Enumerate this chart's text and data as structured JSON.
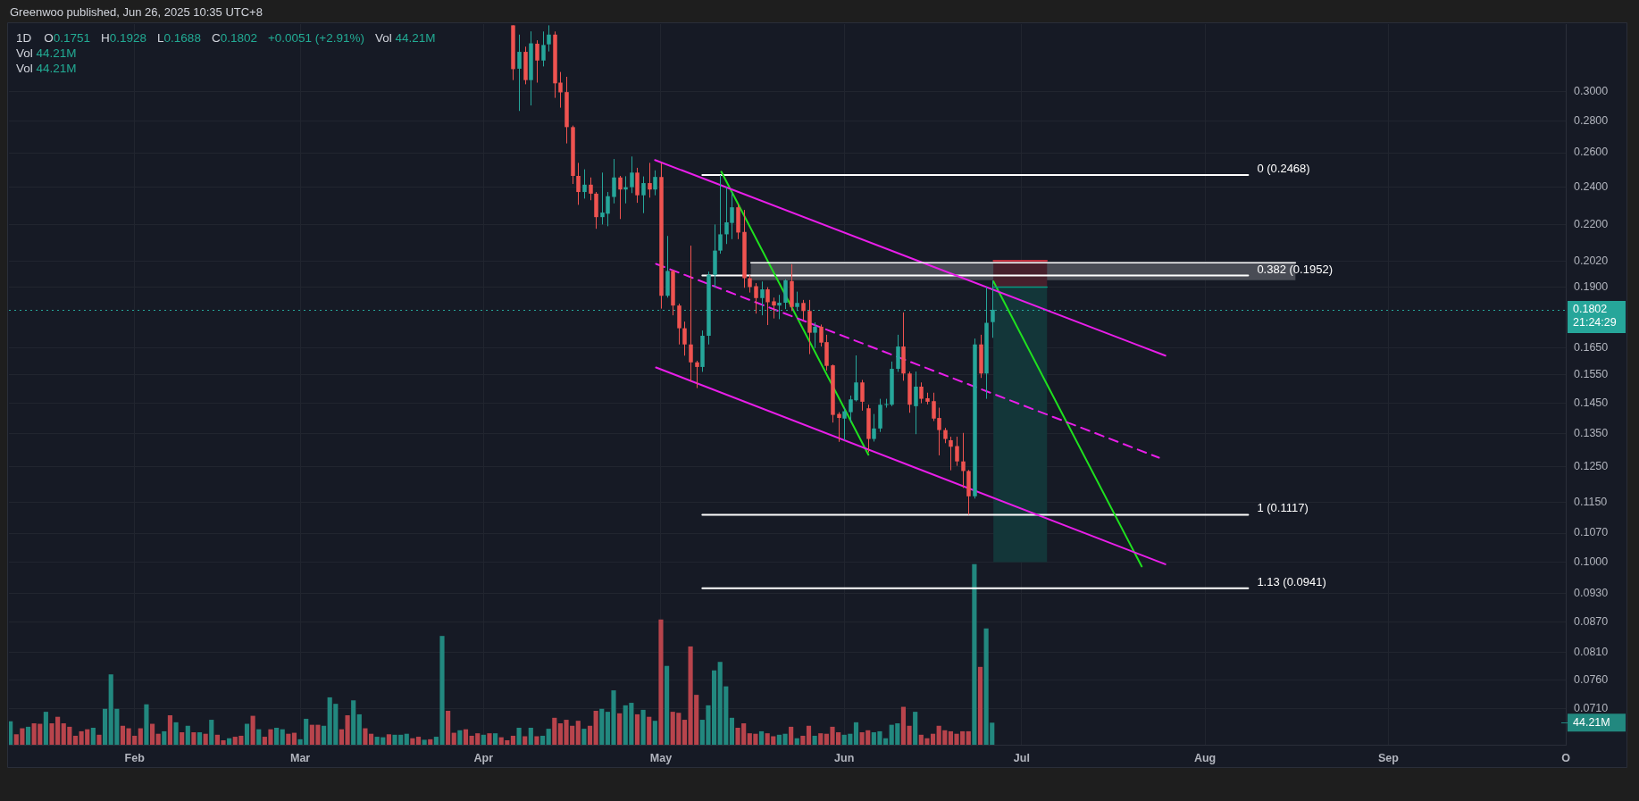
{
  "chart_data": {
    "type": "candlestick",
    "title": "1D",
    "subtitle": "Greenwoo published, Jun 26, 2025 10:35 UTC+8",
    "annotations": [
      "O0.1751",
      "H0.1928",
      "L0.1688",
      "C0.1802",
      "+0.0051 (+2.91%)",
      "Vol 44.21M",
      "Vol 44.21M",
      "Vol 44.21M",
      "21:24:29"
    ],
    "xlim": [
      "2025-01-10T18:00",
      "2025-10-01"
    ],
    "xticks": [
      {
        "value": "2025-02-01",
        "label": "Feb"
      },
      {
        "value": "2025-03-01",
        "label": "Mar"
      },
      {
        "value": "2025-04-01",
        "label": "Apr"
      },
      {
        "value": "2025-05-01",
        "label": "May"
      },
      {
        "value": "2025-06-01",
        "label": "Jun"
      },
      {
        "value": "2025-07-01",
        "label": "Jul"
      },
      {
        "value": "2025-08-01",
        "label": "Aug"
      },
      {
        "value": "2025-09-01",
        "label": "Sep"
      },
      {
        "value": "2025-10-01",
        "label": "O"
      }
    ],
    "ylim": [
      0.0653,
      0.351
    ],
    "yticks": [
      {
        "value": 0.3,
        "label": "0.3000"
      },
      {
        "value": 0.28,
        "label": "0.2800"
      },
      {
        "value": 0.26,
        "label": "0.2600"
      },
      {
        "value": 0.24,
        "label": "0.2400"
      },
      {
        "value": 0.22,
        "label": "0.2200"
      },
      {
        "value": 0.202,
        "label": "0.2020"
      },
      {
        "value": 0.19,
        "label": "0.1900"
      },
      {
        "value": 0.165,
        "label": "0.1650"
      },
      {
        "value": 0.155,
        "label": "0.1550"
      },
      {
        "value": 0.145,
        "label": "0.1450"
      },
      {
        "value": 0.135,
        "label": "0.1350"
      },
      {
        "value": 0.125,
        "label": "0.1250"
      },
      {
        "value": 0.115,
        "label": "0.1150"
      },
      {
        "value": 0.107,
        "label": "0.1070"
      },
      {
        "value": 0.1,
        "label": "0.1000"
      },
      {
        "value": 0.093,
        "label": "0.0930"
      },
      {
        "value": 0.087,
        "label": "0.0870"
      },
      {
        "value": 0.081,
        "label": "0.0810"
      },
      {
        "value": 0.076,
        "label": "0.0760"
      },
      {
        "value": 0.071,
        "label": "0.0710"
      }
    ],
    "y2lim": [
      0,
      1444
    ],
    "y2ticks": [
      {
        "value": 44.21,
        "label": "44.21M"
      }
    ],
    "log": true,
    "grid": true,
    "ref_lines": [
      {
        "axis": "y",
        "value": 0.1802,
        "label": "0.1802",
        "color": "#26a69a",
        "line_style": "dotted"
      }
    ],
    "series": [
      {
        "type": "bar",
        "axis": "y2",
        "x": [
          "2025-01-11",
          "2025-01-12",
          "2025-01-13",
          "2025-01-14",
          "2025-01-15",
          "2025-01-16",
          "2025-01-17",
          "2025-01-18",
          "2025-01-19",
          "2025-01-20",
          "2025-01-21",
          "2025-01-22",
          "2025-01-23",
          "2025-01-24",
          "2025-01-25",
          "2025-01-26",
          "2025-01-27",
          "2025-01-28",
          "2025-01-29",
          "2025-01-30",
          "2025-01-31",
          "2025-02-01",
          "2025-02-02",
          "2025-02-03",
          "2025-02-04",
          "2025-02-05",
          "2025-02-06",
          "2025-02-07",
          "2025-02-08",
          "2025-02-09",
          "2025-02-10",
          "2025-02-11",
          "2025-02-12",
          "2025-02-13",
          "2025-02-14",
          "2025-02-15",
          "2025-02-16",
          "2025-02-17",
          "2025-02-18",
          "2025-02-19",
          "2025-02-20",
          "2025-02-21",
          "2025-02-22",
          "2025-02-23",
          "2025-02-24",
          "2025-02-25",
          "2025-02-26",
          "2025-02-27",
          "2025-02-28",
          "2025-03-01",
          "2025-03-02",
          "2025-03-03",
          "2025-03-04",
          "2025-03-05",
          "2025-03-06",
          "2025-03-07",
          "2025-03-08",
          "2025-03-09",
          "2025-03-10",
          "2025-03-11",
          "2025-03-12",
          "2025-03-13",
          "2025-03-14",
          "2025-03-15",
          "2025-03-16",
          "2025-03-17",
          "2025-03-18",
          "2025-03-19",
          "2025-03-20",
          "2025-03-21",
          "2025-03-22",
          "2025-03-23",
          "2025-03-24",
          "2025-03-25",
          "2025-03-26",
          "2025-03-27",
          "2025-03-28",
          "2025-03-29",
          "2025-03-30",
          "2025-03-31",
          "2025-04-01",
          "2025-04-02",
          "2025-04-03",
          "2025-04-04",
          "2025-04-05",
          "2025-04-06",
          "2025-04-07",
          "2025-04-08",
          "2025-04-09",
          "2025-04-10",
          "2025-04-11",
          "2025-04-12",
          "2025-04-13",
          "2025-04-14",
          "2025-04-15",
          "2025-04-16",
          "2025-04-17",
          "2025-04-18",
          "2025-04-19",
          "2025-04-20",
          "2025-04-21",
          "2025-04-22",
          "2025-04-23",
          "2025-04-24",
          "2025-04-25",
          "2025-04-26",
          "2025-04-27",
          "2025-04-28",
          "2025-04-29",
          "2025-04-30",
          "2025-05-01",
          "2025-05-02",
          "2025-05-03",
          "2025-05-04",
          "2025-05-05",
          "2025-05-06",
          "2025-05-07",
          "2025-05-08",
          "2025-05-09",
          "2025-05-10",
          "2025-05-11",
          "2025-05-12",
          "2025-05-13",
          "2025-05-14",
          "2025-05-15",
          "2025-05-16",
          "2025-05-17",
          "2025-05-18",
          "2025-05-19",
          "2025-05-20",
          "2025-05-21",
          "2025-05-22",
          "2025-05-23",
          "2025-05-24",
          "2025-05-25",
          "2025-05-26",
          "2025-05-27",
          "2025-05-28",
          "2025-05-29",
          "2025-05-30",
          "2025-05-31",
          "2025-06-01",
          "2025-06-02",
          "2025-06-03",
          "2025-06-04",
          "2025-06-05",
          "2025-06-06",
          "2025-06-07",
          "2025-06-08",
          "2025-06-09",
          "2025-06-10",
          "2025-06-11",
          "2025-06-12",
          "2025-06-13",
          "2025-06-14",
          "2025-06-15",
          "2025-06-16",
          "2025-06-17",
          "2025-06-18",
          "2025-06-19",
          "2025-06-20",
          "2025-06-21",
          "2025-06-22",
          "2025-06-23",
          "2025-06-24",
          "2025-06-25",
          "2025-06-26"
        ],
        "values": [
          47,
          21,
          33,
          36,
          43,
          42,
          66,
          43,
          56,
          43,
          36,
          18,
          27,
          31,
          34,
          20,
          72,
          141,
          72,
          38,
          33,
          18,
          33,
          81,
          42,
          22,
          27,
          59,
          45,
          25,
          38,
          25,
          25,
          22,
          50,
          20,
          9,
          13,
          16,
          18,
          42,
          58,
          31,
          16,
          31,
          34,
          31,
          22,
          24,
          11,
          52,
          40,
          40,
          38,
          95,
          82,
          31,
          59,
          89,
          61,
          33,
          22,
          16,
          15,
          21,
          20,
          20,
          22,
          13,
          16,
          10,
          11,
          16,
          218,
          68,
          24,
          29,
          31,
          18,
          23,
          20,
          23,
          23,
          15,
          9,
          18,
          34,
          17,
          34,
          17,
          18,
          32,
          54,
          43,
          50,
          38,
          48,
          32,
          38,
          68,
          72,
          66,
          109,
          63,
          79,
          84,
          61,
          70,
          56,
          48,
          251,
          158,
          66,
          64,
          50,
          197,
          100,
          50,
          79,
          149,
          166,
          117,
          54,
          34,
          43,
          23,
          22,
          27,
          23,
          17,
          20,
          22,
          36,
          13,
          18,
          38,
          18,
          23,
          22,
          36,
          25,
          20,
          22,
          45,
          25,
          29,
          25,
          27,
          13,
          40,
          43,
          76,
          38,
          66,
          20,
          13,
          22,
          38,
          29,
          27,
          22,
          27,
          27,
          362,
          156,
          233,
          44.21
        ],
        "colors": [
          "#22887f",
          "#b8444c",
          "#b8444c",
          "#22887f",
          "#b8444c",
          "#b8444c",
          "#22887f",
          "#b8444c",
          "#b8444c",
          "#b8444c",
          "#b8444c",
          "#b8444c",
          "#b8444c",
          "#b8444c",
          "#22887f",
          "#b8444c",
          "#22887f",
          "#22887f",
          "#22887f",
          "#b8444c",
          "#b8444c",
          "#b8444c",
          "#b8444c",
          "#22887f",
          "#b8444c",
          "#b8444c",
          "#22887f",
          "#b8444c",
          "#22887f",
          "#b8444c",
          "#22887f",
          "#b8444c",
          "#22887f",
          "#b8444c",
          "#22887f",
          "#b8444c",
          "#b8444c",
          "#22887f",
          "#b8444c",
          "#b8444c",
          "#22887f",
          "#b8444c",
          "#22887f",
          "#b8444c",
          "#b8444c",
          "#22887f",
          "#22887f",
          "#b8444c",
          "#b8444c",
          "#22887f",
          "#22887f",
          "#b8444c",
          "#b8444c",
          "#22887f",
          "#22887f",
          "#22887f",
          "#b8444c",
          "#b8444c",
          "#22887f",
          "#22887f",
          "#b8444c",
          "#b8444c",
          "#22887f",
          "#22887f",
          "#b8444c",
          "#22887f",
          "#22887f",
          "#22887f",
          "#b8444c",
          "#b8444c",
          "#22887f",
          "#b8444c",
          "#22887f",
          "#22887f",
          "#b8444c",
          "#b8444c",
          "#22887f",
          "#b8444c",
          "#b8444c",
          "#b8444c",
          "#22887f",
          "#b8444c",
          "#22887f",
          "#b8444c",
          "#b8444c",
          "#b8444c",
          "#22887f",
          "#b8444c",
          "#22887f",
          "#b8444c",
          "#22887f",
          "#22887f",
          "#b8444c",
          "#b8444c",
          "#b8444c",
          "#b8444c",
          "#b8444c",
          "#22887f",
          "#b8444c",
          "#b8444c",
          "#22887f",
          "#22887f",
          "#22887f",
          "#b8444c",
          "#22887f",
          "#22887f",
          "#b8444c",
          "#22887f",
          "#b8444c",
          "#22887f",
          "#b8444c",
          "#22887f",
          "#b8444c",
          "#b8444c",
          "#b8444c",
          "#b8444c",
          "#b8444c",
          "#22887f",
          "#22887f",
          "#22887f",
          "#22887f",
          "#22887f",
          "#22887f",
          "#b8444c",
          "#b8444c",
          "#b8444c",
          "#b8444c",
          "#22887f",
          "#b8444c",
          "#b8444c",
          "#22887f",
          "#22887f",
          "#b8444c",
          "#22887f",
          "#b8444c",
          "#b8444c",
          "#22887f",
          "#b8444c",
          "#b8444c",
          "#b8444c",
          "#b8444c",
          "#22887f",
          "#22887f",
          "#22887f",
          "#b8444c",
          "#b8444c",
          "#22887f",
          "#22887f",
          "#22887f",
          "#22887f",
          "#22887f",
          "#b8444c",
          "#b8444c",
          "#22887f",
          "#b8444c",
          "#b8444c",
          "#b8444c",
          "#b8444c",
          "#b8444c",
          "#b8444c",
          "#b8444c",
          "#b8444c",
          "#b8444c",
          "#22887f",
          "#b8444c",
          "#22887f",
          "#22887f"
        ]
      },
      {
        "x": [
          "2025-04-06",
          "2025-04-07",
          "2025-04-08",
          "2025-04-09",
          "2025-04-10",
          "2025-04-11",
          "2025-04-12",
          "2025-04-13",
          "2025-04-14",
          "2025-04-15",
          "2025-04-16",
          "2025-04-17",
          "2025-04-18",
          "2025-04-19",
          "2025-04-20",
          "2025-04-21",
          "2025-04-22",
          "2025-04-23",
          "2025-04-24",
          "2025-04-25",
          "2025-04-26",
          "2025-04-27",
          "2025-04-28",
          "2025-04-29",
          "2025-04-30",
          "2025-05-01",
          "2025-05-02",
          "2025-05-03",
          "2025-05-04",
          "2025-05-05",
          "2025-05-06",
          "2025-05-07",
          "2025-05-08",
          "2025-05-09",
          "2025-05-10",
          "2025-05-11",
          "2025-05-12",
          "2025-05-13",
          "2025-05-14",
          "2025-05-15",
          "2025-05-16",
          "2025-05-17",
          "2025-05-18",
          "2025-05-19",
          "2025-05-20",
          "2025-05-21",
          "2025-05-22",
          "2025-05-23",
          "2025-05-24",
          "2025-05-25",
          "2025-05-26",
          "2025-05-27",
          "2025-05-28",
          "2025-05-29",
          "2025-05-30",
          "2025-05-31",
          "2025-06-01",
          "2025-06-02",
          "2025-06-03",
          "2025-06-04",
          "2025-06-05",
          "2025-06-06",
          "2025-06-07",
          "2025-06-08",
          "2025-06-09",
          "2025-06-10",
          "2025-06-11",
          "2025-06-12",
          "2025-06-13",
          "2025-06-14",
          "2025-06-15",
          "2025-06-16",
          "2025-06-17",
          "2025-06-18",
          "2025-06-19",
          "2025-06-20",
          "2025-06-21",
          "2025-06-22",
          "2025-06-23",
          "2025-06-24",
          "2025-06-25",
          "2025-06-26"
        ],
        "ohlc": [
          [
            0.35,
            0.35,
            0.308,
            0.316
          ],
          [
            0.3163,
            0.3425,
            0.2866,
            0.329
          ],
          [
            0.329,
            0.333,
            0.305,
            0.308
          ],
          [
            0.308,
            0.3451,
            0.2903,
            0.3356
          ],
          [
            0.3353,
            0.338,
            0.3062,
            0.3224
          ],
          [
            0.3224,
            0.345,
            0.318,
            0.3343
          ],
          [
            0.3348,
            0.35,
            0.3293,
            0.3425
          ],
          [
            0.3425,
            0.345,
            0.2955,
            0.3057
          ],
          [
            0.3062,
            0.3139,
            0.2888,
            0.2993
          ],
          [
            0.2995,
            0.3104,
            0.2657,
            0.276
          ],
          [
            0.276,
            0.277,
            0.2417,
            0.2463
          ],
          [
            0.2463,
            0.2539,
            0.2302,
            0.2372
          ],
          [
            0.2372,
            0.2501,
            0.2336,
            0.2413
          ],
          [
            0.2413,
            0.2454,
            0.2327,
            0.2363
          ],
          [
            0.2363,
            0.2372,
            0.2177,
            0.2237
          ],
          [
            0.2237,
            0.2482,
            0.2199,
            0.2261
          ],
          [
            0.2255,
            0.2372,
            0.219,
            0.2349
          ],
          [
            0.2345,
            0.2562,
            0.231,
            0.2454
          ],
          [
            0.2454,
            0.2463,
            0.2227,
            0.2386
          ],
          [
            0.2386,
            0.2461,
            0.231,
            0.2399
          ],
          [
            0.2399,
            0.2577,
            0.2366,
            0.2482
          ],
          [
            0.2482,
            0.251,
            0.2313,
            0.2354
          ],
          [
            0.2354,
            0.246,
            0.2258,
            0.2422
          ],
          [
            0.2422,
            0.2539,
            0.2341,
            0.2386
          ],
          [
            0.2386,
            0.2495,
            0.2354,
            0.2457
          ],
          [
            0.2457,
            0.2539,
            0.1807,
            0.1862
          ],
          [
            0.1862,
            0.2141,
            0.1854,
            0.1973
          ],
          [
            0.1973,
            0.1977,
            0.1779,
            0.182
          ],
          [
            0.182,
            0.1828,
            0.1662,
            0.1726
          ],
          [
            0.1726,
            0.1753,
            0.1619,
            0.1662
          ],
          [
            0.1662,
            0.2093,
            0.1524,
            0.1594
          ],
          [
            0.1594,
            0.16,
            0.1501,
            0.1577
          ],
          [
            0.1577,
            0.1717,
            0.1559,
            0.1696
          ],
          [
            0.1696,
            0.197,
            0.1662,
            0.1955
          ],
          [
            0.1955,
            0.2199,
            0.1897,
            0.2069
          ],
          [
            0.2069,
            0.2468,
            0.2054,
            0.2149
          ],
          [
            0.2149,
            0.2399,
            0.2101,
            0.221
          ],
          [
            0.2207,
            0.2372,
            0.2125,
            0.2289
          ],
          [
            0.2289,
            0.2307,
            0.2125,
            0.2158
          ],
          [
            0.2161,
            0.2275,
            0.1897,
            0.194
          ],
          [
            0.194,
            0.1955,
            0.1876,
            0.19
          ],
          [
            0.1904,
            0.1918,
            0.1786,
            0.1852
          ],
          [
            0.1852,
            0.1925,
            0.1779,
            0.189
          ],
          [
            0.189,
            0.19,
            0.1739,
            0.1834
          ],
          [
            0.1838,
            0.1854,
            0.1766,
            0.182
          ],
          [
            0.182,
            0.1866,
            0.1763,
            0.1832
          ],
          [
            0.1832,
            0.1935,
            0.1805,
            0.193
          ],
          [
            0.1927,
            0.2004,
            0.1797,
            0.1814
          ],
          [
            0.1814,
            0.188,
            0.1797,
            0.1831
          ],
          [
            0.1831,
            0.1844,
            0.176,
            0.1797
          ],
          [
            0.1797,
            0.1844,
            0.1625,
            0.1708
          ],
          [
            0.1708,
            0.175,
            0.1648,
            0.1732
          ],
          [
            0.1732,
            0.1741,
            0.1654,
            0.1669
          ],
          [
            0.1671,
            0.17,
            0.1564,
            0.1581
          ],
          [
            0.1583,
            0.1586,
            0.1385,
            0.141
          ],
          [
            0.1413,
            0.1419,
            0.1324,
            0.14
          ],
          [
            0.1398,
            0.1434,
            0.1329,
            0.1422
          ],
          [
            0.1419,
            0.1475,
            0.1385,
            0.1462
          ],
          [
            0.1459,
            0.162,
            0.1455,
            0.1521
          ],
          [
            0.1521,
            0.153,
            0.1424,
            0.1454
          ],
          [
            0.1432,
            0.1444,
            0.1292,
            0.1333
          ],
          [
            0.1333,
            0.1413,
            0.1325,
            0.1366
          ],
          [
            0.1366,
            0.1464,
            0.1355,
            0.1444
          ],
          [
            0.1444,
            0.1464,
            0.1434,
            0.1446
          ],
          [
            0.1444,
            0.1597,
            0.1439,
            0.157
          ],
          [
            0.157,
            0.17,
            0.1559,
            0.1654
          ],
          [
            0.1654,
            0.1791,
            0.1527,
            0.1553
          ],
          [
            0.1553,
            0.156,
            0.1417,
            0.1444
          ],
          [
            0.1439,
            0.156,
            0.1348,
            0.1506
          ],
          [
            0.1506,
            0.1521,
            0.1449,
            0.1464
          ],
          [
            0.1466,
            0.1485,
            0.1445,
            0.1454
          ],
          [
            0.1456,
            0.1485,
            0.139,
            0.1398
          ],
          [
            0.14,
            0.1434,
            0.1283,
            0.1361
          ],
          [
            0.1361,
            0.1368,
            0.132,
            0.1333
          ],
          [
            0.1329,
            0.134,
            0.1239,
            0.1309
          ],
          [
            0.1311,
            0.134,
            0.1252,
            0.1265
          ],
          [
            0.1265,
            0.1352,
            0.1189,
            0.1237
          ],
          [
            0.1237,
            0.124,
            0.1117,
            0.1166
          ],
          [
            0.1166,
            0.1685,
            0.116,
            0.1662
          ],
          [
            0.1662,
            0.17,
            0.1537,
            0.1553
          ],
          [
            0.1553,
            0.19,
            0.1464,
            0.1748
          ],
          [
            0.1751,
            0.1928,
            0.1688,
            0.1802
          ]
        ],
        "colors": [
          "#ef5350",
          "#26a69a",
          "#ef5350",
          "#26a69a",
          "#ef5350",
          "#26a69a",
          "#26a69a",
          "#ef5350",
          "#ef5350",
          "#ef5350",
          "#ef5350",
          "#ef5350",
          "#26a69a",
          "#ef5350",
          "#ef5350",
          "#26a69a",
          "#26a69a",
          "#26a69a",
          "#ef5350",
          "#26a69a",
          "#26a69a",
          "#ef5350",
          "#26a69a",
          "#ef5350",
          "#26a69a",
          "#ef5350",
          "#26a69a",
          "#ef5350",
          "#ef5350",
          "#ef5350",
          "#ef5350",
          "#ef5350",
          "#26a69a",
          "#26a69a",
          "#26a69a",
          "#26a69a",
          "#26a69a",
          "#26a69a",
          "#ef5350",
          "#ef5350",
          "#ef5350",
          "#ef5350",
          "#26a69a",
          "#ef5350",
          "#ef5350",
          "#26a69a",
          "#26a69a",
          "#ef5350",
          "#26a69a",
          "#ef5350",
          "#ef5350",
          "#26a69a",
          "#ef5350",
          "#ef5350",
          "#ef5350",
          "#ef5350",
          "#26a69a",
          "#26a69a",
          "#26a69a",
          "#ef5350",
          "#ef5350",
          "#26a69a",
          "#26a69a",
          "#26a69a",
          "#26a69a",
          "#26a69a",
          "#ef5350",
          "#ef5350",
          "#26a69a",
          "#ef5350",
          "#ef5350",
          "#ef5350",
          "#ef5350",
          "#ef5350",
          "#ef5350",
          "#ef5350",
          "#ef5350",
          "#ef5350",
          "#26a69a",
          "#ef5350",
          "#26a69a",
          "#26a69a"
        ]
      },
      {
        "type": "line",
        "color": "#ffffff",
        "x": [
          "2025-05-16T05:00",
          "2025-08-16T07:00"
        ],
        "values": [
          0.2011,
          0.2011
        ],
        "lower": [
          0.1931,
          0.1931
        ],
        "upper": [
          0.2011,
          0.2011
        ]
      },
      {
        "type": "line",
        "color": "#f23645",
        "x": [
          "2025-06-26T05:00",
          "2025-07-05T07:00"
        ],
        "values": [
          0.202,
          0.202
        ],
        "lower": [
          0.19,
          0.19
        ],
        "upper": [
          0.202,
          0.202
        ]
      },
      {
        "type": "line",
        "color": "#089981",
        "x": [
          "2025-06-26T05:00",
          "2025-07-05T07:00"
        ],
        "values": [
          0.19,
          0.19
        ],
        "lower": [
          0.1,
          0.1
        ],
        "upper": [
          0.19,
          0.19
        ]
      },
      {
        "type": "line",
        "color": "#e91ee9",
        "x": [
          "2025-04-30",
          "2025-07-25T07:00"
        ],
        "values": [
          0.2556,
          0.1619
        ]
      },
      {
        "type": "line",
        "color": "#e91ee9",
        "line_style": "dashed",
        "x": [
          "2025-04-30T04:00",
          "2025-07-24T05:00"
        ],
        "values": [
          0.2006,
          0.1276
        ]
      },
      {
        "type": "line",
        "color": "#e91ee9",
        "x": [
          "2025-04-30T04:00",
          "2025-07-25T07:00"
        ],
        "values": [
          0.1575,
          0.0995
        ]
      },
      {
        "type": "line",
        "color": "#1fe01f",
        "x": [
          "2025-05-11T05:00",
          "2025-06-05T02:00"
        ],
        "values": [
          0.2487,
          0.1285
        ]
      },
      {
        "type": "line",
        "color": "#1fe01f",
        "x": [
          "2025-06-26T05:00",
          "2025-07-21T07:00"
        ],
        "values": [
          0.1926,
          0.099
        ]
      },
      {
        "type": "line",
        "name": "0 (0.2468)",
        "color": "#ffffff",
        "x": [
          "2025-05-08",
          "2025-08-08T07:00"
        ],
        "values": [
          0.2468,
          0.2468
        ]
      },
      {
        "type": "line",
        "name": "0.382 (0.1952)",
        "color": "#ffffff",
        "x": [
          "2025-05-08",
          "2025-08-08T07:00"
        ],
        "values": [
          0.1952,
          0.1952
        ]
      },
      {
        "type": "line",
        "name": "1 (0.1117)",
        "color": "#ffffff",
        "x": [
          "2025-05-08",
          "2025-08-08T07:00"
        ],
        "values": [
          0.1117,
          0.1117
        ]
      },
      {
        "type": "line",
        "name": "1.13 (0.0941)",
        "color": "#ffffff",
        "x": [
          "2025-05-08",
          "2025-08-08T07:00"
        ],
        "values": [
          0.0941,
          0.0941
        ]
      }
    ]
  }
}
